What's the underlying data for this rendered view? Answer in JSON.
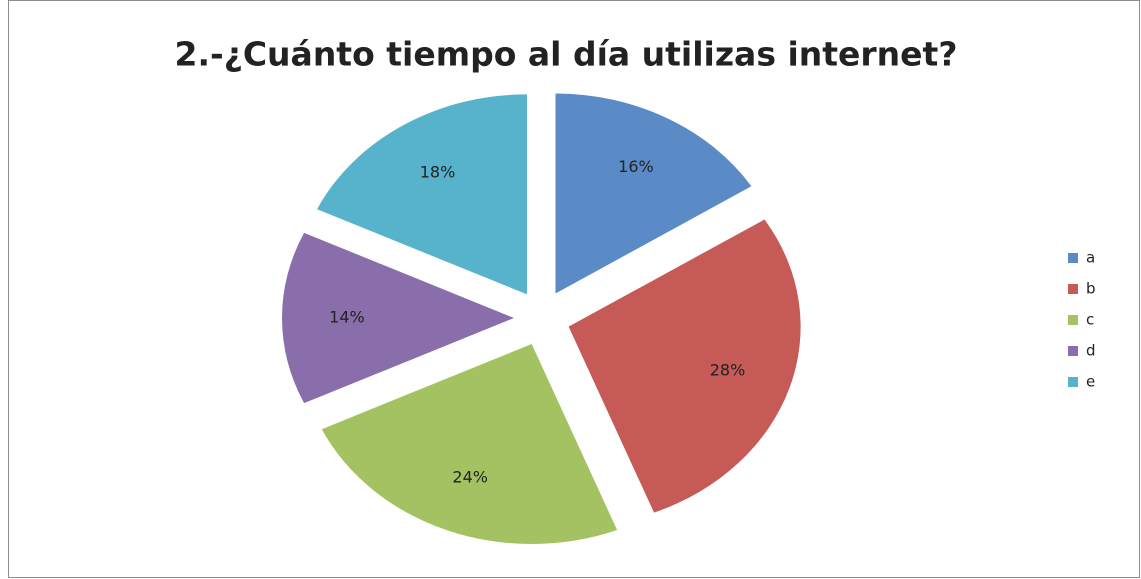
{
  "chart_data": {
    "type": "pie",
    "title": "2.-¿Cuánto tiempo al día utilizas internet?",
    "categories": [
      "a",
      "b",
      "c",
      "d",
      "e"
    ],
    "values": [
      16,
      28,
      24,
      14,
      18
    ],
    "value_labels": [
      "16%",
      "28%",
      "24%",
      "14%",
      "18%"
    ],
    "colors": [
      "#5b8bc6",
      "#c65a56",
      "#a5c263",
      "#8a6eab",
      "#56b3cb"
    ],
    "legend": "right"
  }
}
